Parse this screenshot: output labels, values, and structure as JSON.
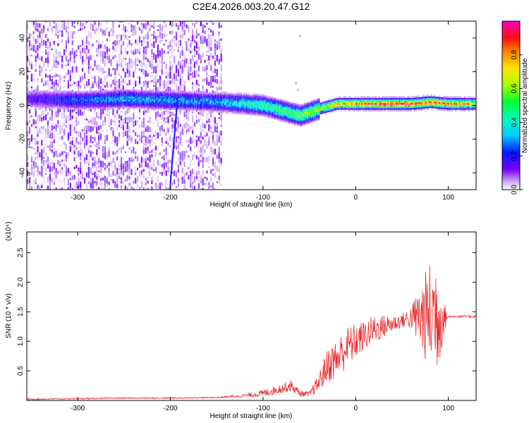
{
  "figure": {
    "title": "C2E4.2026.003.20.47.G12"
  },
  "chart_data": [
    {
      "type": "heatmap",
      "name": "spectrogram",
      "xlabel": "Height of straight line (km)",
      "ylabel": "Frequency (Hz)",
      "xlim": [
        -355,
        130
      ],
      "ylim": [
        -50,
        50
      ],
      "xticks": [
        -300,
        -200,
        -100,
        0,
        100
      ],
      "yticks": [
        -40,
        -20,
        0,
        20,
        40
      ],
      "colorbar": {
        "label": "Normalized spectral amplitude",
        "range": [
          0,
          1
        ],
        "ticks": [
          0.0,
          0.2,
          0.4,
          0.6,
          0.8
        ],
        "tick_labels": [
          "0.0",
          "0.2",
          "0.4",
          "0.6",
          "0.8"
        ]
      },
      "noise_region_x": [
        -355,
        -145
      ],
      "ridge": {
        "x": [
          -355,
          -300,
          -250,
          -200,
          -150,
          -120,
          -100,
          -80,
          -60,
          -40,
          -20,
          0,
          20,
          40,
          60,
          80,
          100,
          130
        ],
        "freq": [
          4,
          3,
          4,
          3,
          2,
          1,
          0,
          -3,
          -6,
          -2,
          1,
          1,
          1,
          1,
          1,
          2,
          1,
          1
        ],
        "amp": [
          0.15,
          0.25,
          0.3,
          0.3,
          0.3,
          0.4,
          0.45,
          0.5,
          0.55,
          0.6,
          0.75,
          0.8,
          0.85,
          0.9,
          0.9,
          0.8,
          0.85,
          0.7
        ]
      }
    },
    {
      "type": "line",
      "name": "snr",
      "xlabel": "Height of straight line (km)",
      "ylabel": "SNR (10 * v/v)",
      "scale_label": "(x10⁴)",
      "xlim": [
        -355,
        130
      ],
      "ylim": [
        0,
        2.85
      ],
      "xticks": [
        -300,
        -200,
        -100,
        0,
        100
      ],
      "yticks": [
        0.5,
        1.0,
        1.5,
        2.0,
        2.5
      ],
      "ytick_labels": [
        "0.5",
        "1.0",
        "1.5",
        "2.0",
        "2.5"
      ],
      "color": "#e8282a",
      "x": [
        -355,
        -300,
        -250,
        -200,
        -150,
        -120,
        -100,
        -80,
        -70,
        -60,
        -50,
        -40,
        -30,
        -20,
        -10,
        0,
        10,
        20,
        30,
        40,
        50,
        60,
        70,
        80,
        85,
        90,
        95,
        100,
        130
      ],
      "y": [
        0.02,
        0.03,
        0.04,
        0.04,
        0.05,
        0.08,
        0.12,
        0.2,
        0.25,
        0.12,
        0.1,
        0.3,
        0.6,
        0.7,
        0.9,
        1.0,
        1.1,
        1.2,
        1.25,
        1.3,
        1.35,
        1.4,
        1.4,
        1.45,
        1.5,
        1.45,
        1.4,
        1.42,
        1.42
      ],
      "noise": [
        0.01,
        0.01,
        0.01,
        0.01,
        0.01,
        0.03,
        0.06,
        0.08,
        0.1,
        0.05,
        0.05,
        0.15,
        0.3,
        0.35,
        0.35,
        0.3,
        0.25,
        0.25,
        0.2,
        0.15,
        0.12,
        0.2,
        0.6,
        0.9,
        1.1,
        0.9,
        0.3,
        0.02,
        0.02
      ]
    }
  ]
}
